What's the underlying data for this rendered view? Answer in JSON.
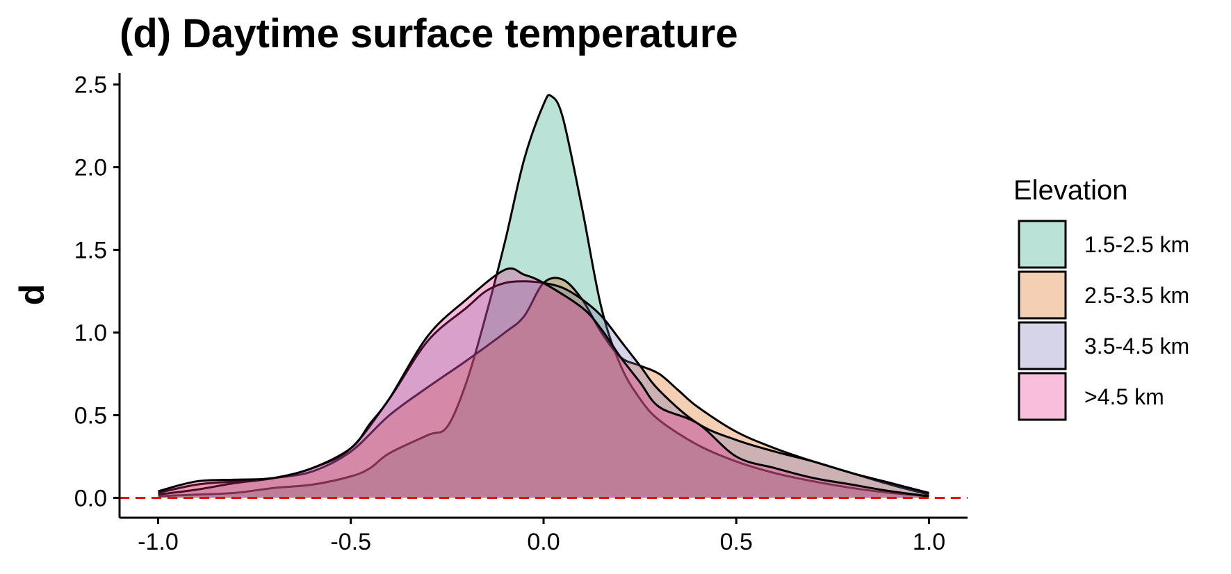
{
  "chart_data": {
    "type": "area",
    "title": "(d) Daytime surface temperature",
    "xlabel": "",
    "ylabel": "d",
    "xlim": [
      -1.1,
      1.1
    ],
    "ylim": [
      -0.12,
      2.57
    ],
    "x_ticks": [
      -1.0,
      -0.5,
      0.0,
      0.5,
      1.0
    ],
    "x_tick_labels": [
      "-1.0",
      "-0.5",
      "0.0",
      "0.5",
      "1.0"
    ],
    "y_ticks": [
      0.0,
      0.5,
      1.0,
      1.5,
      2.0,
      2.5
    ],
    "y_tick_labels": [
      "0.0",
      "0.5",
      "1.0",
      "1.5",
      "2.0",
      "2.5"
    ],
    "grid": false,
    "reference_line": {
      "y": 0,
      "style": "dashed",
      "color": "#ff0000"
    },
    "legend": {
      "title": "Elevation",
      "position": "right"
    },
    "series": [
      {
        "name": "1.5-2.5 km",
        "color": "#1b9e77",
        "x": [
          -1.0,
          -0.9,
          -0.8,
          -0.7,
          -0.6,
          -0.5,
          -0.45,
          -0.4,
          -0.3,
          -0.25,
          -0.2,
          -0.15,
          -0.1,
          -0.05,
          0.0,
          0.02,
          0.05,
          0.1,
          0.15,
          0.2,
          0.25,
          0.3,
          0.4,
          0.5,
          0.6,
          0.7,
          0.8,
          0.9,
          1.0
        ],
        "y": [
          0.01,
          0.02,
          0.03,
          0.06,
          0.08,
          0.13,
          0.18,
          0.27,
          0.38,
          0.43,
          0.7,
          1.1,
          1.55,
          2.05,
          2.38,
          2.43,
          2.3,
          1.75,
          1.15,
          0.8,
          0.6,
          0.47,
          0.32,
          0.22,
          0.15,
          0.1,
          0.06,
          0.03,
          0.01
        ]
      },
      {
        "name": "2.5-3.5 km",
        "color": "#d95f02",
        "x": [
          -1.0,
          -0.9,
          -0.8,
          -0.7,
          -0.6,
          -0.5,
          -0.4,
          -0.3,
          -0.2,
          -0.1,
          -0.05,
          0.0,
          0.05,
          0.1,
          0.15,
          0.2,
          0.25,
          0.3,
          0.35,
          0.4,
          0.5,
          0.6,
          0.7,
          0.8,
          0.9,
          1.0
        ],
        "y": [
          0.03,
          0.08,
          0.1,
          0.12,
          0.16,
          0.28,
          0.5,
          0.67,
          0.83,
          1.0,
          1.1,
          1.3,
          1.32,
          1.2,
          1.0,
          0.85,
          0.8,
          0.75,
          0.65,
          0.55,
          0.4,
          0.3,
          0.22,
          0.15,
          0.08,
          0.02
        ]
      },
      {
        "name": "3.5-4.5 km",
        "color": "#7570b3",
        "x": [
          -1.0,
          -0.9,
          -0.8,
          -0.7,
          -0.6,
          -0.5,
          -0.4,
          -0.3,
          -0.2,
          -0.15,
          -0.1,
          -0.05,
          0.0,
          0.05,
          0.1,
          0.15,
          0.2,
          0.25,
          0.3,
          0.4,
          0.5,
          0.6,
          0.7,
          0.8,
          0.9,
          1.0
        ],
        "y": [
          0.02,
          0.05,
          0.09,
          0.12,
          0.18,
          0.3,
          0.6,
          0.95,
          1.15,
          1.25,
          1.3,
          1.31,
          1.3,
          1.27,
          1.2,
          1.1,
          0.95,
          0.8,
          0.65,
          0.45,
          0.35,
          0.28,
          0.22,
          0.15,
          0.09,
          0.03
        ]
      },
      {
        "name": ">4.5 km",
        "color": "#e7298a",
        "x": [
          -1.0,
          -0.9,
          -0.8,
          -0.7,
          -0.6,
          -0.5,
          -0.45,
          -0.4,
          -0.3,
          -0.2,
          -0.1,
          -0.05,
          0.0,
          0.1,
          0.15,
          0.2,
          0.25,
          0.3,
          0.4,
          0.5,
          0.6,
          0.7,
          0.8,
          0.9,
          1.0
        ],
        "y": [
          0.04,
          0.1,
          0.11,
          0.12,
          0.18,
          0.3,
          0.45,
          0.6,
          0.98,
          1.2,
          1.38,
          1.35,
          1.3,
          1.15,
          1.02,
          0.85,
          0.7,
          0.55,
          0.45,
          0.25,
          0.18,
          0.12,
          0.08,
          0.04,
          0.01
        ]
      }
    ]
  }
}
